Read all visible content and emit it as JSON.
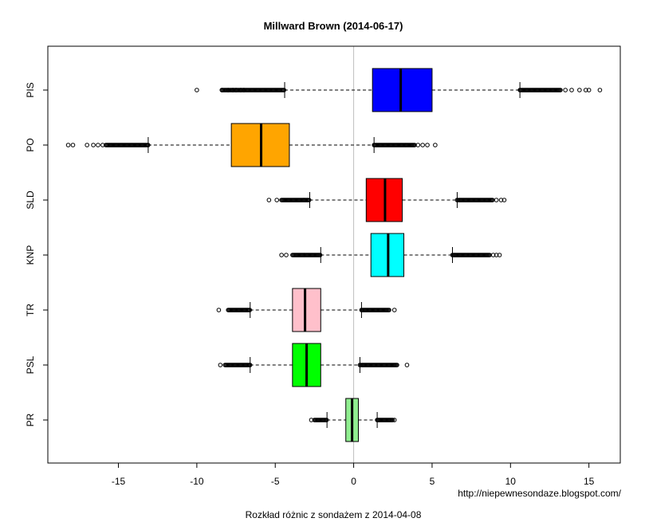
{
  "chart_data": {
    "type": "boxplot",
    "orientation": "horizontal",
    "title": "Millward Brown (2014-06-17)",
    "xlabel": "Rozkład różnic z sondażem z 2014-04-08",
    "ylabel": "",
    "source_note": "http://niepewnesondaze.blogspot.com/",
    "xlim": [
      -19.5,
      17
    ],
    "xticks": [
      -15,
      -10,
      -5,
      0,
      5,
      10,
      15
    ],
    "xtick_labels": [
      "-15",
      "-10",
      "-5",
      "0",
      "5",
      "10",
      "15"
    ],
    "reference_line": 0,
    "series": [
      {
        "name": "PIS",
        "color": "#0000ff",
        "whisker_low": -4.4,
        "q1": 1.2,
        "median": 3.0,
        "q3": 5.0,
        "whisker_high": 10.6,
        "outlier_range_low": [
          -8.4,
          -4.4
        ],
        "outlier_range_high": [
          10.6,
          13.2
        ],
        "sparse_outliers": [
          -10.0,
          -8.4,
          -8.0,
          -7.7,
          -7.5,
          -7.2,
          -7.0,
          13.5,
          13.9,
          14.4,
          14.8,
          15.0,
          15.7
        ]
      },
      {
        "name": "PO",
        "color": "#ffa500",
        "whisker_low": -13.1,
        "q1": -7.8,
        "median": -5.9,
        "q3": -4.1,
        "whisker_high": 1.3,
        "outlier_range_low": [
          -15.8,
          -13.1
        ],
        "outlier_range_high": [
          1.3,
          3.9
        ],
        "sparse_outliers": [
          -18.2,
          -17.9,
          -17.0,
          -16.6,
          -16.3,
          -16.0,
          4.1,
          4.4,
          4.7,
          5.2
        ]
      },
      {
        "name": "SLD",
        "color": "#ff0000",
        "whisker_low": -2.8,
        "q1": 0.8,
        "median": 2.0,
        "q3": 3.1,
        "whisker_high": 6.6,
        "outlier_range_low": [
          -4.6,
          -2.8
        ],
        "outlier_range_high": [
          6.6,
          8.9
        ],
        "sparse_outliers": [
          -5.4,
          -4.9,
          9.1,
          9.4,
          9.6
        ]
      },
      {
        "name": "KNP",
        "color": "#00ffff",
        "whisker_low": -2.1,
        "q1": 1.1,
        "median": 2.2,
        "q3": 3.2,
        "whisker_high": 6.3,
        "outlier_range_low": [
          -3.9,
          -2.1
        ],
        "outlier_range_high": [
          6.3,
          8.7
        ],
        "sparse_outliers": [
          -4.6,
          -4.3,
          8.9,
          9.1,
          9.3
        ]
      },
      {
        "name": "TR",
        "color": "#ffc0cb",
        "whisker_low": -6.6,
        "q1": -3.9,
        "median": -3.1,
        "q3": -2.1,
        "whisker_high": 0.5,
        "outlier_range_low": [
          -8.0,
          -6.6
        ],
        "outlier_range_high": [
          0.5,
          2.3
        ],
        "sparse_outliers": [
          -8.6,
          2.6
        ]
      },
      {
        "name": "PSL",
        "color": "#00ff00",
        "whisker_low": -6.6,
        "q1": -3.9,
        "median": -3.0,
        "q3": -2.1,
        "whisker_high": 0.4,
        "outlier_range_low": [
          -8.2,
          -6.6
        ],
        "outlier_range_high": [
          0.4,
          2.8
        ],
        "sparse_outliers": [
          -8.5,
          3.4
        ]
      },
      {
        "name": "PR",
        "color": "#90ee90",
        "whisker_low": -1.7,
        "q1": -0.5,
        "median": -0.1,
        "q3": 0.3,
        "whisker_high": 1.5,
        "outlier_range_low": [
          -2.5,
          -1.7
        ],
        "outlier_range_high": [
          1.5,
          2.5
        ],
        "sparse_outliers": [
          -2.7,
          2.6
        ]
      }
    ]
  }
}
